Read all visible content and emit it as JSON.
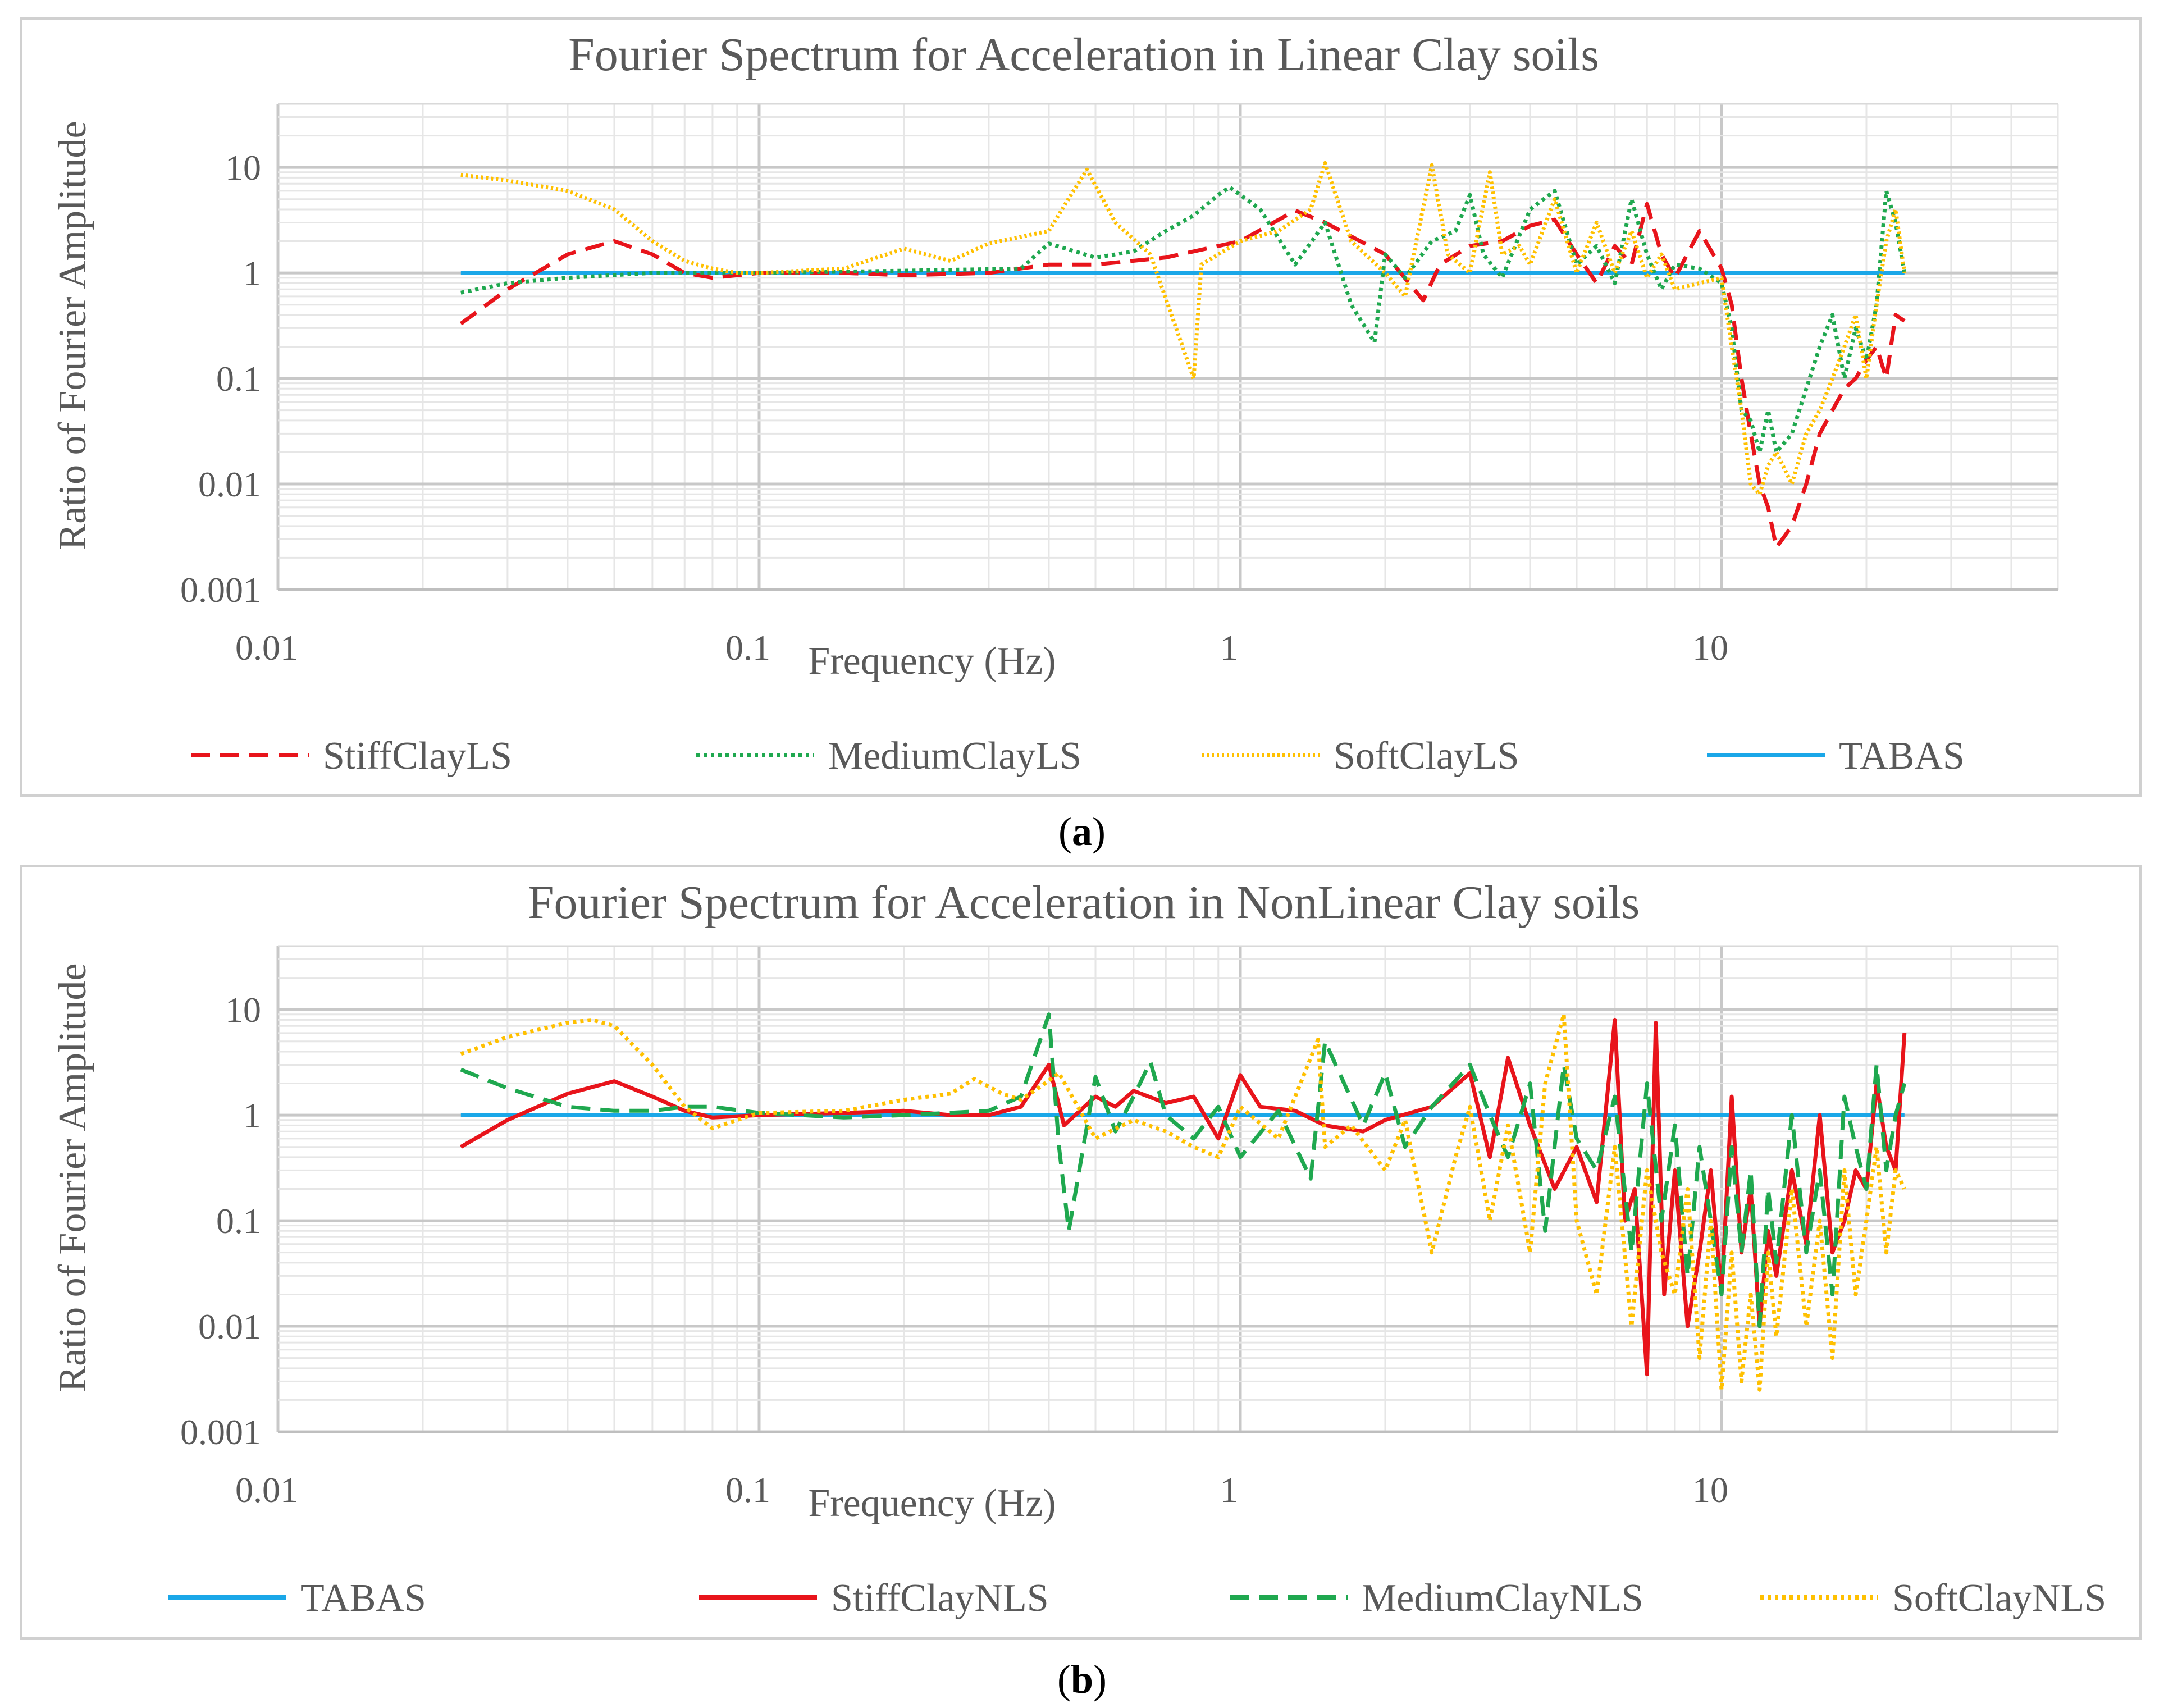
{
  "captions": [
    {
      "open": "(",
      "letter": "a",
      "close": ")"
    },
    {
      "open": "(",
      "letter": "b",
      "close": ")"
    }
  ],
  "chart_data": [
    {
      "type": "line",
      "title": "Fourier Spectrum for Acceleration in Linear Clay soils",
      "xlabel": "Frequency (Hz)",
      "ylabel": "Ratio of Fourier Amplitude",
      "xscale": "log",
      "yscale": "log",
      "xlim": [
        0.01,
        50
      ],
      "ylim": [
        0.001,
        40
      ],
      "xticks": [
        "0.01",
        "0.1",
        "1",
        "10"
      ],
      "yticks": [
        "0.001",
        "0.01",
        "0.1",
        "1",
        "10"
      ],
      "grid": true,
      "legend_position": "bottom",
      "series": [
        {
          "name": "StiffClayLS",
          "color": "#e8141b",
          "dash": "dashed",
          "x": [
            0.024,
            0.03,
            0.04,
            0.05,
            0.06,
            0.07,
            0.08,
            0.1,
            0.15,
            0.2,
            0.3,
            0.4,
            0.5,
            0.7,
            1.0,
            1.3,
            1.5,
            2.0,
            2.4,
            2.6,
            3.0,
            3.5,
            4.0,
            4.5,
            5.0,
            5.5,
            6.0,
            6.5,
            7.0,
            7.5,
            8.0,
            9.0,
            10.0,
            10.5,
            11.0,
            11.5,
            12.0,
            12.5,
            13.0,
            14.0,
            15.0,
            16.0,
            17.0,
            18.0,
            19.0,
            20.0,
            21.0,
            22.0,
            23.0,
            24.0
          ],
          "y": [
            0.33,
            0.7,
            1.5,
            2.0,
            1.5,
            1.0,
            0.9,
            1.0,
            1.0,
            0.95,
            1.0,
            1.2,
            1.2,
            1.4,
            2.0,
            3.9,
            3.0,
            1.5,
            0.55,
            1.2,
            1.8,
            2.0,
            2.8,
            3.2,
            1.5,
            0.8,
            1.8,
            1.2,
            4.5,
            1.5,
            0.9,
            2.5,
            1.1,
            0.5,
            0.1,
            0.03,
            0.01,
            0.006,
            0.0025,
            0.004,
            0.01,
            0.03,
            0.05,
            0.08,
            0.1,
            0.15,
            0.2,
            0.1,
            0.4,
            0.35
          ]
        },
        {
          "name": "MediumClayLS",
          "color": "#1fa84f",
          "dash": "dotted",
          "x": [
            0.024,
            0.03,
            0.04,
            0.06,
            0.08,
            0.1,
            0.2,
            0.35,
            0.4,
            0.5,
            0.6,
            0.7,
            0.8,
            0.9,
            0.95,
            1.1,
            1.3,
            1.5,
            1.7,
            1.9,
            2.0,
            2.2,
            2.5,
            2.8,
            3.0,
            3.2,
            3.5,
            4.0,
            4.5,
            5.0,
            5.5,
            6.0,
            6.5,
            7.0,
            7.5,
            8.0,
            9.0,
            10.0,
            10.5,
            11.0,
            11.5,
            12.0,
            12.5,
            13.0,
            14.0,
            15.0,
            16.0,
            17.0,
            18.0,
            19.0,
            20.0,
            21.0,
            22.0,
            23.0,
            24.0
          ],
          "y": [
            0.65,
            0.8,
            0.9,
            1.0,
            1.0,
            1.0,
            1.05,
            1.1,
            1.9,
            1.4,
            1.6,
            2.5,
            3.5,
            5.5,
            6.5,
            4.0,
            1.2,
            3.0,
            0.5,
            0.22,
            1.5,
            0.9,
            2.0,
            2.5,
            5.5,
            1.5,
            0.9,
            4.0,
            6.0,
            1.2,
            1.8,
            0.8,
            5.0,
            1.5,
            0.7,
            1.2,
            1.1,
            0.8,
            0.3,
            0.05,
            0.04,
            0.02,
            0.05,
            0.02,
            0.03,
            0.08,
            0.2,
            0.4,
            0.1,
            0.3,
            0.15,
            0.5,
            6.0,
            3.0,
            1.0
          ]
        },
        {
          "name": "SoftClayLS",
          "color": "#ffc000",
          "dash": "dotted-fine",
          "x": [
            0.024,
            0.03,
            0.04,
            0.05,
            0.06,
            0.07,
            0.08,
            0.09,
            0.1,
            0.15,
            0.2,
            0.25,
            0.3,
            0.35,
            0.4,
            0.45,
            0.48,
            0.55,
            0.65,
            0.8,
            0.83,
            0.9,
            1.0,
            1.2,
            1.4,
            1.5,
            1.7,
            2.0,
            2.2,
            2.5,
            2.7,
            3.0,
            3.3,
            3.5,
            3.8,
            4.0,
            4.5,
            5.0,
            5.5,
            6.0,
            6.5,
            7.0,
            7.5,
            8.0,
            9.0,
            10.0,
            10.5,
            11.0,
            11.5,
            12.0,
            12.5,
            13.0,
            14.0,
            15.0,
            16.0,
            17.0,
            18.0,
            19.0,
            20.0,
            21.0,
            22.0,
            23.0,
            24.0
          ],
          "y": [
            8.5,
            7.5,
            6.0,
            4.0,
            2.0,
            1.3,
            1.1,
            1.0,
            1.0,
            1.1,
            1.7,
            1.3,
            1.9,
            2.2,
            2.5,
            6.0,
            9.5,
            3.0,
            1.5,
            0.1,
            1.2,
            1.5,
            2.0,
            2.5,
            4.0,
            11.0,
            2.0,
            1.0,
            0.6,
            10.5,
            1.5,
            1.0,
            9.0,
            1.5,
            1.8,
            1.2,
            5.0,
            1.0,
            3.0,
            1.0,
            2.5,
            0.9,
            1.5,
            0.7,
            0.8,
            0.9,
            0.2,
            0.05,
            0.01,
            0.008,
            0.015,
            0.02,
            0.01,
            0.03,
            0.05,
            0.1,
            0.2,
            0.4,
            0.1,
            0.5,
            2.0,
            4.0,
            1.0
          ]
        },
        {
          "name": "TABAS",
          "color": "#1aa7e8",
          "dash": "solid",
          "x": [
            0.024,
            24.0
          ],
          "y": [
            1.0,
            1.0
          ]
        }
      ],
      "legend_order": [
        "StiffClayLS",
        "MediumClayLS",
        "SoftClayLS",
        "TABAS"
      ]
    },
    {
      "type": "line",
      "title": "Fourier Spectrum for Acceleration in NonLinear Clay soils",
      "xlabel": "Frequency (Hz)",
      "ylabel": "Ratio of Fourier Amplitude",
      "xscale": "log",
      "yscale": "log",
      "xlim": [
        0.01,
        50
      ],
      "ylim": [
        0.001,
        40
      ],
      "xticks": [
        "0.01",
        "0.1",
        "1",
        "10"
      ],
      "yticks": [
        "0.001",
        "0.01",
        "0.1",
        "1",
        "10"
      ],
      "grid": true,
      "legend_position": "bottom",
      "series": [
        {
          "name": "TABAS",
          "color": "#1aa7e8",
          "dash": "solid",
          "x": [
            0.024,
            24.0
          ],
          "y": [
            1.0,
            1.0
          ]
        },
        {
          "name": "StiffClayNLS",
          "color": "#e8141b",
          "dash": "solid",
          "x": [
            0.024,
            0.03,
            0.04,
            0.05,
            0.06,
            0.07,
            0.08,
            0.1,
            0.15,
            0.2,
            0.25,
            0.3,
            0.35,
            0.4,
            0.43,
            0.5,
            0.55,
            0.6,
            0.7,
            0.8,
            0.9,
            1.0,
            1.1,
            1.3,
            1.5,
            1.8,
            2.0,
            2.5,
            3.0,
            3.3,
            3.6,
            4.0,
            4.5,
            5.0,
            5.5,
            6.0,
            6.3,
            6.6,
            7.0,
            7.3,
            7.6,
            8.0,
            8.5,
            9.0,
            9.5,
            10.0,
            10.5,
            11.0,
            11.5,
            12.0,
            12.5,
            13.0,
            14.0,
            15.0,
            16.0,
            17.0,
            18.0,
            19.0,
            20.0,
            21.0,
            22.0,
            23.0,
            24.0
          ],
          "y": [
            0.5,
            0.9,
            1.6,
            2.1,
            1.5,
            1.1,
            0.95,
            1.0,
            1.05,
            1.1,
            1.0,
            1.0,
            1.2,
            3.0,
            0.8,
            1.5,
            1.2,
            1.7,
            1.3,
            1.5,
            0.6,
            2.4,
            1.2,
            1.1,
            0.8,
            0.7,
            0.9,
            1.2,
            2.5,
            0.4,
            3.5,
            0.8,
            0.2,
            0.5,
            0.15,
            8.0,
            0.1,
            0.2,
            0.0035,
            7.5,
            0.02,
            0.3,
            0.01,
            0.05,
            0.3,
            0.02,
            1.5,
            0.05,
            0.2,
            0.01,
            0.08,
            0.03,
            0.3,
            0.06,
            1.0,
            0.05,
            0.1,
            0.3,
            0.2,
            2.0,
            0.5,
            0.3,
            6.0
          ]
        },
        {
          "name": "MediumClayNLS",
          "color": "#1fa84f",
          "dash": "dashed",
          "x": [
            0.024,
            0.03,
            0.04,
            0.05,
            0.06,
            0.07,
            0.08,
            0.1,
            0.15,
            0.2,
            0.3,
            0.35,
            0.4,
            0.42,
            0.44,
            0.5,
            0.55,
            0.6,
            0.65,
            0.7,
            0.8,
            0.9,
            1.0,
            1.2,
            1.4,
            1.5,
            1.8,
            2.0,
            2.2,
            2.5,
            3.0,
            3.3,
            3.6,
            4.0,
            4.3,
            4.7,
            5.0,
            5.5,
            6.0,
            6.5,
            7.0,
            7.5,
            8.0,
            8.5,
            9.0,
            9.5,
            10.0,
            10.5,
            11.0,
            11.5,
            12.0,
            12.5,
            13.0,
            14.0,
            15.0,
            16.0,
            17.0,
            18.0,
            19.0,
            20.0,
            21.0,
            22.0,
            23.0,
            24.0
          ],
          "y": [
            2.7,
            1.8,
            1.2,
            1.1,
            1.1,
            1.2,
            1.2,
            1.05,
            0.95,
            1.0,
            1.1,
            1.5,
            9.0,
            0.5,
            0.08,
            2.3,
            0.7,
            1.5,
            3.2,
            1.0,
            0.6,
            1.2,
            0.4,
            1.1,
            0.25,
            5.0,
            0.8,
            2.5,
            0.5,
            1.2,
            3.0,
            1.0,
            0.4,
            2.0,
            0.08,
            3.0,
            0.6,
            0.3,
            1.5,
            0.05,
            2.0,
            0.1,
            0.8,
            0.03,
            0.5,
            0.1,
            0.02,
            0.5,
            0.05,
            0.3,
            0.01,
            0.2,
            0.04,
            1.0,
            0.05,
            0.3,
            0.02,
            1.5,
            0.5,
            0.2,
            3.0,
            0.3,
            1.0,
            2.0
          ]
        },
        {
          "name": "SoftClayNLS",
          "color": "#ffc000",
          "dash": "dotted",
          "x": [
            0.024,
            0.03,
            0.04,
            0.045,
            0.05,
            0.06,
            0.07,
            0.08,
            0.09,
            0.1,
            0.15,
            0.2,
            0.25,
            0.28,
            0.32,
            0.35,
            0.38,
            0.42,
            0.5,
            0.6,
            0.7,
            0.8,
            0.9,
            1.0,
            1.2,
            1.45,
            1.5,
            1.7,
            2.0,
            2.2,
            2.5,
            2.8,
            3.0,
            3.3,
            3.6,
            4.0,
            4.3,
            4.7,
            5.0,
            5.5,
            6.0,
            6.5,
            7.0,
            7.5,
            8.0,
            8.5,
            9.0,
            9.5,
            10.0,
            10.5,
            11.0,
            11.5,
            12.0,
            12.5,
            13.0,
            14.0,
            15.0,
            16.0,
            17.0,
            18.0,
            19.0,
            20.0,
            21.0,
            22.0,
            23.0,
            24.0
          ],
          "y": [
            3.8,
            5.5,
            7.5,
            8.0,
            7.0,
            3.0,
            1.2,
            0.75,
            0.9,
            1.05,
            1.1,
            1.4,
            1.6,
            2.2,
            1.6,
            1.4,
            1.8,
            2.5,
            0.6,
            0.9,
            0.7,
            0.5,
            0.4,
            1.2,
            0.6,
            5.2,
            0.5,
            0.8,
            0.3,
            0.9,
            0.05,
            0.4,
            1.2,
            0.1,
            0.8,
            0.05,
            2.0,
            9.0,
            0.1,
            0.02,
            0.5,
            0.01,
            0.3,
            0.05,
            0.02,
            0.2,
            0.005,
            0.1,
            0.0025,
            0.05,
            0.003,
            0.02,
            0.0025,
            0.05,
            0.008,
            0.2,
            0.01,
            0.1,
            0.005,
            0.3,
            0.02,
            0.1,
            0.5,
            0.05,
            0.3,
            0.2
          ]
        }
      ],
      "legend_order": [
        "TABAS",
        "StiffClayNLS",
        "MediumClayNLS",
        "SoftClayNLS"
      ]
    }
  ]
}
